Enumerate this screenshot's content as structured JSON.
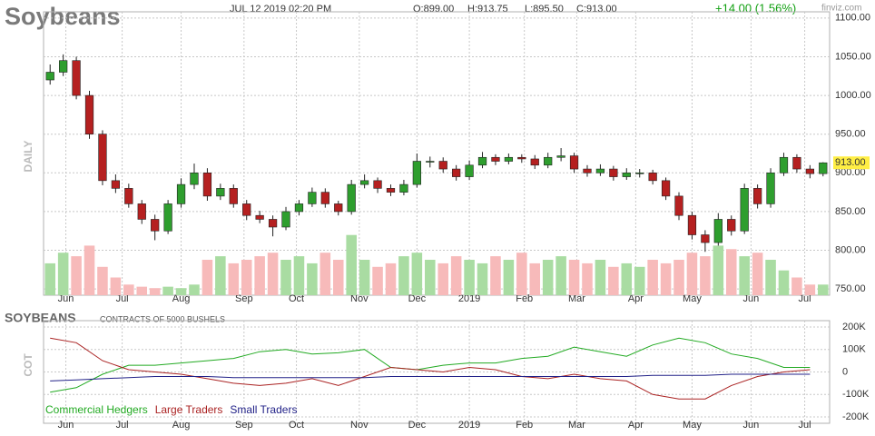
{
  "chart_data": [
    {
      "type": "candlestick",
      "title": "Soybeans",
      "y_axis_label": "DAILY",
      "site": "finviz.com",
      "annotations": [
        "JUL 12 2019 02:20 PM",
        "O:899.00",
        "H:913.75",
        "L:895.50",
        "C:913.00"
      ],
      "change_label": "+14.00 (1.56%)",
      "last_price_label": "913.00",
      "up_color": "#2e9e2e",
      "down_color": "#b52020",
      "volume_up_color": "#a9dca2",
      "volume_down_color": "#f7baba",
      "xlim": [
        -0.5,
        59.5
      ],
      "xticks": [
        {
          "value": 1.2,
          "label": "Jun"
        },
        {
          "value": 5.5,
          "label": "Jul"
        },
        {
          "value": 10,
          "label": "Aug"
        },
        {
          "value": 14.8,
          "label": "Sep"
        },
        {
          "value": 18.8,
          "label": "Oct"
        },
        {
          "value": 23.6,
          "label": "Nov"
        },
        {
          "value": 28,
          "label": "Dec"
        },
        {
          "value": 32,
          "label": "2019"
        },
        {
          "value": 36.2,
          "label": "Feb"
        },
        {
          "value": 40.2,
          "label": "Mar"
        },
        {
          "value": 44.7,
          "label": "Apr"
        },
        {
          "value": 49,
          "label": "May"
        },
        {
          "value": 53.5,
          "label": "Jun"
        },
        {
          "value": 57.6,
          "label": "Jul"
        }
      ],
      "ylim": [
        742,
        1108
      ],
      "yticks": [
        {
          "value": 750,
          "label": "750.00"
        },
        {
          "value": 800,
          "label": "800.00"
        },
        {
          "value": 850,
          "label": "850.00"
        },
        {
          "value": 900,
          "label": "900.00"
        },
        {
          "value": 950,
          "label": "950.00"
        },
        {
          "value": 1000,
          "label": "1000.00"
        },
        {
          "value": 1050,
          "label": "1050.00"
        },
        {
          "value": 1100,
          "label": "1100.00"
        }
      ],
      "grid": true,
      "open": [
        1020,
        1030,
        1045,
        1000,
        950,
        890,
        880,
        860,
        840,
        825,
        860,
        885,
        900,
        870,
        880,
        860,
        845,
        840,
        830,
        850,
        860,
        875,
        860,
        850,
        885,
        890,
        880,
        875,
        885,
        915,
        915,
        905,
        895,
        910,
        920,
        915,
        920,
        918,
        910,
        920,
        922,
        905,
        900,
        905,
        895,
        900,
        900,
        890,
        870,
        845,
        820,
        810,
        840,
        825,
        880,
        860,
        900,
        920,
        905,
        899
      ],
      "high": [
        1040,
        1053,
        1050,
        1006,
        955,
        898,
        886,
        865,
        846,
        865,
        893,
        912,
        906,
        886,
        885,
        865,
        851,
        845,
        856,
        865,
        881,
        880,
        864,
        891,
        898,
        894,
        885,
        891,
        925,
        921,
        920,
        910,
        916,
        927,
        924,
        925,
        924,
        923,
        926,
        932,
        926,
        910,
        911,
        909,
        906,
        905,
        904,
        894,
        875,
        850,
        826,
        848,
        845,
        886,
        885,
        906,
        926,
        924,
        910,
        913.75
      ],
      "low": [
        1014,
        1025,
        995,
        944,
        884,
        874,
        855,
        834,
        813,
        821,
        855,
        879,
        864,
        865,
        855,
        839,
        835,
        818,
        826,
        845,
        856,
        855,
        845,
        846,
        880,
        874,
        870,
        871,
        881,
        907,
        900,
        890,
        891,
        906,
        910,
        911,
        913,
        905,
        906,
        915,
        900,
        895,
        896,
        890,
        891,
        894,
        885,
        865,
        839,
        814,
        798,
        806,
        819,
        821,
        854,
        855,
        896,
        900,
        893,
        895.5
      ],
      "close": [
        1030,
        1045,
        1000,
        950,
        890,
        880,
        860,
        840,
        825,
        860,
        885,
        900,
        870,
        880,
        860,
        845,
        840,
        830,
        850,
        860,
        875,
        860,
        850,
        885,
        890,
        880,
        875,
        885,
        915,
        915,
        905,
        895,
        910,
        920,
        915,
        920,
        918,
        910,
        920,
        922,
        905,
        900,
        905,
        895,
        900,
        900,
        890,
        870,
        845,
        820,
        810,
        840,
        825,
        880,
        860,
        900,
        920,
        905,
        899,
        913
      ],
      "vlim": [
        0,
        400
      ],
      "volume": [
        45,
        60,
        55,
        70,
        40,
        25,
        15,
        12,
        10,
        12,
        10,
        15,
        50,
        55,
        45,
        50,
        55,
        60,
        50,
        55,
        45,
        60,
        50,
        85,
        50,
        40,
        45,
        55,
        60,
        50,
        45,
        55,
        50,
        45,
        55,
        50,
        60,
        45,
        50,
        55,
        50,
        45,
        50,
        40,
        45,
        40,
        50,
        45,
        50,
        60,
        55,
        70,
        65,
        55,
        60,
        50,
        35,
        25,
        15,
        15
      ]
    },
    {
      "type": "line",
      "title": "SOYBEANS",
      "subtitle": "CONTRACTS OF 5000 BUSHELS",
      "y_axis_label": "COT",
      "xlim": [
        -0.5,
        59.5
      ],
      "xticks": [
        {
          "value": 1.2,
          "label": "Jun"
        },
        {
          "value": 5.5,
          "label": "Jul"
        },
        {
          "value": 10,
          "label": "Aug"
        },
        {
          "value": 14.8,
          "label": "Sep"
        },
        {
          "value": 18.8,
          "label": "Oct"
        },
        {
          "value": 23.6,
          "label": "Nov"
        },
        {
          "value": 28,
          "label": "Dec"
        },
        {
          "value": 32,
          "label": "2019"
        },
        {
          "value": 36.2,
          "label": "Feb"
        },
        {
          "value": 40.2,
          "label": "Mar"
        },
        {
          "value": 44.7,
          "label": "Apr"
        },
        {
          "value": 49,
          "label": "May"
        },
        {
          "value": 53.5,
          "label": "Jun"
        },
        {
          "value": 57.6,
          "label": "Jul"
        }
      ],
      "ylim": [
        -228000,
        228000
      ],
      "yticks": [
        {
          "value": -200000,
          "label": "-200K"
        },
        {
          "value": -100000,
          "label": "-100K"
        },
        0,
        {
          "value": 100000,
          "label": "100K"
        },
        {
          "value": 200000,
          "label": "200K"
        }
      ],
      "grid": true,
      "x": [
        0,
        2,
        4,
        6,
        8,
        10,
        12,
        14,
        16,
        18,
        20,
        22,
        24,
        26,
        28,
        30,
        32,
        34,
        36,
        38,
        40,
        42,
        44,
        46,
        48,
        50,
        52,
        54,
        56,
        58
      ],
      "series": [
        {
          "name": "Commercial Hedgers",
          "color": "#22aa22",
          "values": [
            -90000,
            -70000,
            -10000,
            30000,
            30000,
            40000,
            50000,
            60000,
            90000,
            100000,
            80000,
            85000,
            100000,
            20000,
            10000,
            30000,
            40000,
            40000,
            60000,
            70000,
            110000,
            90000,
            70000,
            120000,
            150000,
            130000,
            80000,
            60000,
            20000,
            20000
          ]
        },
        {
          "name": "Large Traders",
          "color": "#aa2222",
          "values": [
            150000,
            130000,
            50000,
            10000,
            0,
            -10000,
            -30000,
            -50000,
            -60000,
            -50000,
            -30000,
            -60000,
            -20000,
            20000,
            10000,
            0,
            20000,
            10000,
            -20000,
            -30000,
            -10000,
            -30000,
            -40000,
            -100000,
            -120000,
            -120000,
            -60000,
            -20000,
            0,
            10000
          ]
        },
        {
          "name": "Small Traders",
          "color": "#222288",
          "values": [
            -40000,
            -35000,
            -30000,
            -25000,
            -20000,
            -20000,
            -20000,
            -25000,
            -25000,
            -25000,
            -25000,
            -25000,
            -25000,
            -20000,
            -20000,
            -20000,
            -20000,
            -20000,
            -20000,
            -20000,
            -20000,
            -20000,
            -20000,
            -15000,
            -15000,
            -15000,
            -10000,
            -10000,
            -10000,
            -10000
          ]
        }
      ]
    }
  ]
}
